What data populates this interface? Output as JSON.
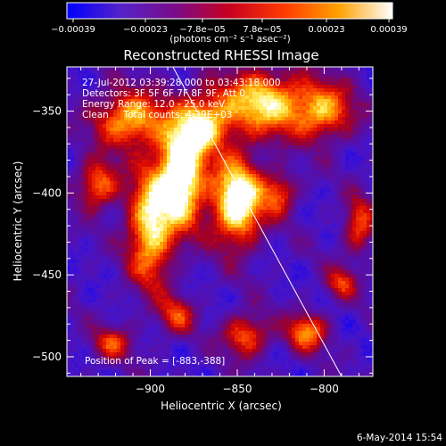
{
  "chart_data": {
    "type": "heatmap",
    "title": "Reconstructed RHESSI Image",
    "xlabel": "Heliocentric X (arcsec)",
    "ylabel": "Heliocentric Y (arcsec)",
    "xlim": [
      -948,
      -772
    ],
    "ylim": [
      -512,
      -323
    ],
    "xticks": [
      -900,
      -850,
      -800
    ],
    "xtick_labels": [
      "−900",
      "−850",
      "−800"
    ],
    "yticks": [
      -350,
      -400,
      -450,
      -500
    ],
    "ytick_labels": [
      "−350",
      "−400",
      "−450",
      "−500"
    ],
    "colorbar": {
      "range": [
        -0.00039,
        0.00039
      ],
      "tick_labels": [
        "−0.00039",
        "−0.00023",
        "−7.8e−05",
        "7.8e−05",
        "0.00023",
        "0.00039"
      ],
      "unit_label": "(photons cm⁻² s⁻¹ asec⁻²)",
      "colors": [
        "#0000ff",
        "#5522c8",
        "#7a0b88",
        "#c8001f",
        "#ff3a00",
        "#ffa000",
        "#ffffff"
      ]
    },
    "annotations": [
      "27-Jul-2012 03:39:28.000 to 03:43:18.000",
      "Detectors: 3F 5F 6F 7F 8F 9F, Att 0",
      "Energy Range: 12.0 - 25.0 keV",
      "Clean     Total counts: 4.29E+03"
    ],
    "peak_label": "Position of Peak = [-883,-388]",
    "peak": [
      -883,
      -388
    ],
    "limb_line": [
      [
        -887,
        -323
      ],
      [
        -790,
        -512
      ]
    ],
    "hotspots": [
      {
        "x": -882,
        "y": -388,
        "amp": 1.0,
        "sx": 9,
        "sy": 22
      },
      {
        "x": -850,
        "y": -405,
        "amp": 0.95,
        "sx": 10,
        "sy": 18
      },
      {
        "x": -900,
        "y": -420,
        "amp": 0.75,
        "sx": 9,
        "sy": 25
      },
      {
        "x": -912,
        "y": -355,
        "amp": 0.65,
        "sx": 14,
        "sy": 12
      },
      {
        "x": -835,
        "y": -345,
        "amp": 0.7,
        "sx": 18,
        "sy": 14
      },
      {
        "x": -868,
        "y": -358,
        "amp": 0.6,
        "sx": 10,
        "sy": 12
      },
      {
        "x": -930,
        "y": -395,
        "amp": 0.55,
        "sx": 8,
        "sy": 10
      },
      {
        "x": -800,
        "y": -350,
        "amp": 0.55,
        "sx": 12,
        "sy": 12
      },
      {
        "x": -810,
        "y": -485,
        "amp": 0.55,
        "sx": 8,
        "sy": 8
      },
      {
        "x": -845,
        "y": -487,
        "amp": 0.5,
        "sx": 9,
        "sy": 9
      },
      {
        "x": -885,
        "y": -475,
        "amp": 0.4,
        "sx": 7,
        "sy": 8
      },
      {
        "x": -922,
        "y": -492,
        "amp": 0.4,
        "sx": 8,
        "sy": 7
      },
      {
        "x": -780,
        "y": -420,
        "amp": 0.45,
        "sx": 6,
        "sy": 12
      },
      {
        "x": -826,
        "y": -400,
        "amp": 0.45,
        "sx": 7,
        "sy": 9
      },
      {
        "x": -790,
        "y": -455,
        "amp": 0.4,
        "sx": 6,
        "sy": 7
      }
    ]
  },
  "footer_timestamp": "6-May-2014 15:54"
}
